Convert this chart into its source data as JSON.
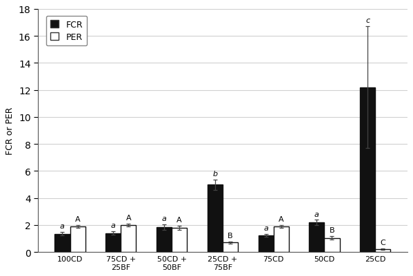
{
  "categories": [
    "100CD",
    "75CD +\n25BF",
    "50CD +\n50BF",
    "25CD +\n75BF",
    "75CD",
    "50CD",
    "25CD"
  ],
  "fcr_values": [
    1.35,
    1.4,
    1.85,
    5.0,
    1.25,
    2.2,
    12.2
  ],
  "per_values": [
    1.9,
    2.0,
    1.8,
    0.7,
    1.9,
    1.05,
    0.2
  ],
  "fcr_errors": [
    0.12,
    0.12,
    0.22,
    0.38,
    0.1,
    0.18,
    4.5
  ],
  "per_errors": [
    0.12,
    0.12,
    0.15,
    0.1,
    0.12,
    0.12,
    0.05
  ],
  "fcr_labels": [
    "a",
    "a",
    "a",
    "b",
    "a",
    "a",
    "c"
  ],
  "per_labels": [
    "A",
    "A",
    "A",
    "B",
    "A",
    "B",
    "C"
  ],
  "ylabel": "FCR or PER",
  "ylim": [
    0,
    18
  ],
  "yticks": [
    0,
    2,
    4,
    6,
    8,
    10,
    12,
    14,
    16,
    18
  ],
  "bar_width": 0.3,
  "fcr_color": "#111111",
  "per_color": "#ffffff",
  "per_edgecolor": "#111111",
  "legend_fcr": "FCR",
  "legend_per": "PER",
  "background_color": "#ffffff",
  "grid_color": "#d0d0d0"
}
